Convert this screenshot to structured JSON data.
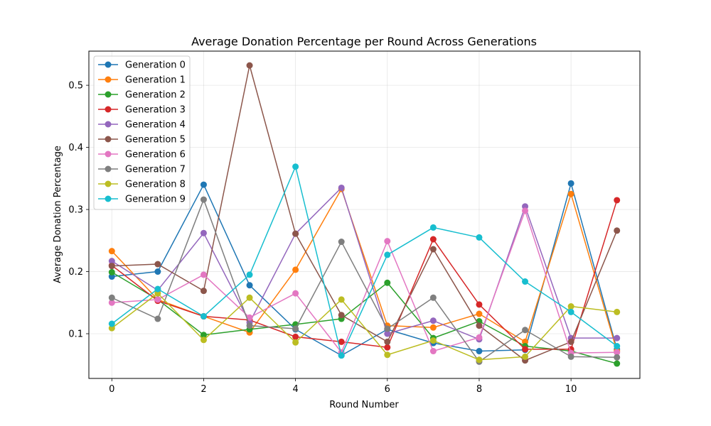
{
  "chart_data": {
    "type": "line",
    "title": "Average Donation Percentage per Round Across Generations",
    "xlabel": "Round Number",
    "ylabel": "Average Donation Percentage",
    "xlim": [
      -0.5,
      11.5
    ],
    "ylim": [
      0.028,
      0.555
    ],
    "x_ticks": [
      0,
      2,
      4,
      6,
      8,
      10
    ],
    "y_ticks": [
      0.1,
      0.2,
      0.3,
      0.4,
      0.5
    ],
    "grid": true,
    "legend_position": "top-left",
    "x": [
      0,
      1,
      2,
      3,
      4,
      5,
      6,
      7,
      8,
      9,
      10,
      11
    ],
    "series": [
      {
        "name": "Generation 0",
        "color": "#1f77b4",
        "values": [
          0.192,
          0.2,
          0.34,
          0.178,
          0.107,
          0.065,
          0.107,
          0.085,
          0.072,
          0.074,
          0.342,
          0.075
        ]
      },
      {
        "name": "Generation 1",
        "color": "#ff7f0e",
        "values": [
          0.233,
          0.155,
          0.128,
          0.102,
          0.203,
          0.333,
          0.113,
          0.11,
          0.132,
          0.087,
          0.325,
          0.072
        ]
      },
      {
        "name": "Generation 2",
        "color": "#2ca02c",
        "values": [
          0.199,
          0.155,
          0.098,
          0.107,
          0.115,
          0.124,
          0.182,
          0.093,
          0.12,
          0.08,
          0.072,
          0.052
        ]
      },
      {
        "name": "Generation 3",
        "color": "#d62728",
        "values": [
          0.21,
          0.153,
          0.128,
          0.122,
          0.095,
          0.087,
          0.078,
          0.252,
          0.147,
          0.075,
          0.075,
          0.315
        ]
      },
      {
        "name": "Generation 4",
        "color": "#9467bd",
        "values": [
          0.217,
          0.17,
          0.262,
          0.118,
          0.261,
          0.335,
          0.1,
          0.121,
          0.091,
          0.305,
          0.093,
          0.093
        ]
      },
      {
        "name": "Generation 5",
        "color": "#8c564b",
        "values": [
          0.209,
          0.212,
          0.169,
          0.532,
          0.261,
          0.13,
          0.087,
          0.236,
          0.113,
          0.057,
          0.087,
          0.266
        ]
      },
      {
        "name": "Generation 6",
        "color": "#e377c2",
        "values": [
          0.15,
          0.155,
          0.195,
          0.126,
          0.165,
          0.07,
          0.249,
          0.072,
          0.094,
          0.298,
          0.069,
          0.07
        ]
      },
      {
        "name": "Generation 7",
        "color": "#7f7f7f",
        "values": [
          0.158,
          0.124,
          0.316,
          0.113,
          0.108,
          0.248,
          0.108,
          0.158,
          0.055,
          0.106,
          0.063,
          0.062
        ]
      },
      {
        "name": "Generation 8",
        "color": "#bcbd22",
        "values": [
          0.109,
          0.165,
          0.09,
          0.158,
          0.086,
          0.155,
          0.066,
          0.089,
          0.058,
          0.063,
          0.144,
          0.135
        ]
      },
      {
        "name": "Generation 9",
        "color": "#17becf",
        "values": [
          0.116,
          0.172,
          0.128,
          0.195,
          0.369,
          0.065,
          0.227,
          0.271,
          0.255,
          0.184,
          0.135,
          0.08
        ]
      }
    ]
  }
}
